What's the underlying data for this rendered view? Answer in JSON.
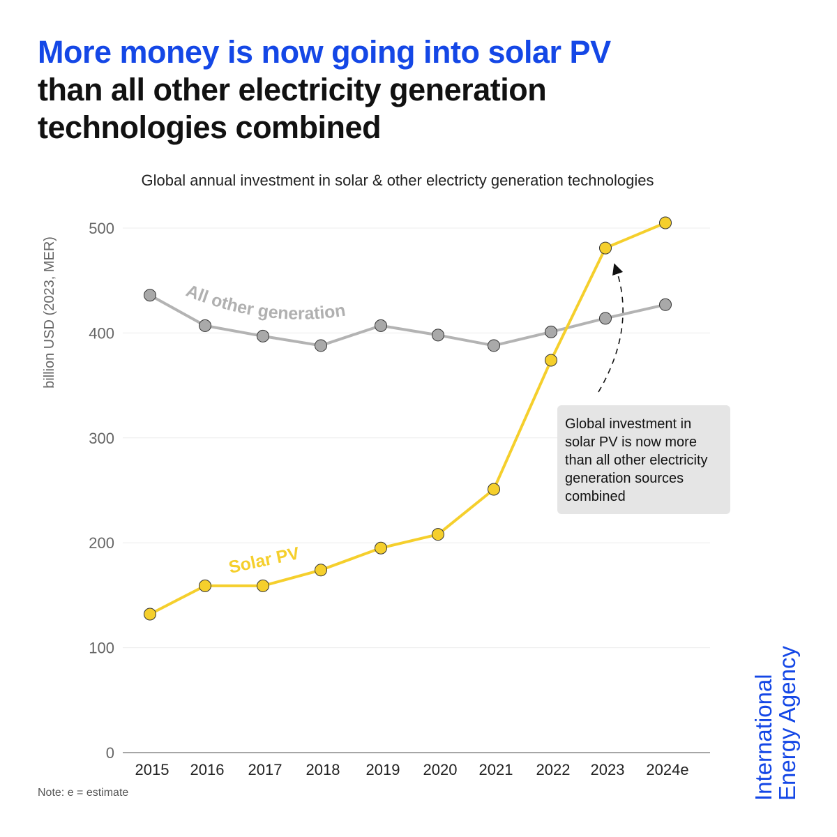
{
  "header": {
    "title_highlight": "More money is now going into solar PV",
    "title_rest_line1": "than all other electricity generation",
    "title_rest_line2": "technologies combined",
    "subtitle": "Global annual investment in solar & other electricty generation technologies"
  },
  "note": "Note: e = estimate",
  "logo": {
    "line1": "International",
    "line2": "Energy Agency"
  },
  "colors": {
    "brand_blue": "#1447e6",
    "solar": "#f5cf2c",
    "other": "#b3b3b3",
    "marker_other": "#a9a9a9"
  },
  "chart_data": {
    "type": "line",
    "title": "Global annual investment in solar & other electricty generation technologies",
    "xlabel": "",
    "ylabel": "billion USD (2023, MER)",
    "categories": [
      "2015",
      "2016",
      "2017",
      "2018",
      "2019",
      "2020",
      "2021",
      "2022",
      "2023",
      "2024e"
    ],
    "yticks": [
      "0",
      "100",
      "200",
      "300",
      "400",
      "500"
    ],
    "ylim": [
      0,
      500
    ],
    "grid": true,
    "series": [
      {
        "name": "All other generation",
        "values": [
          436,
          407,
          397,
          388,
          407,
          398,
          388,
          401,
          414,
          427
        ]
      },
      {
        "name": "Solar PV",
        "values": [
          132,
          159,
          159,
          174,
          195,
          208,
          251,
          374,
          481,
          505
        ]
      }
    ],
    "annotation": "Global investment in solar PV is now more than all other electricity generation sources combined"
  }
}
